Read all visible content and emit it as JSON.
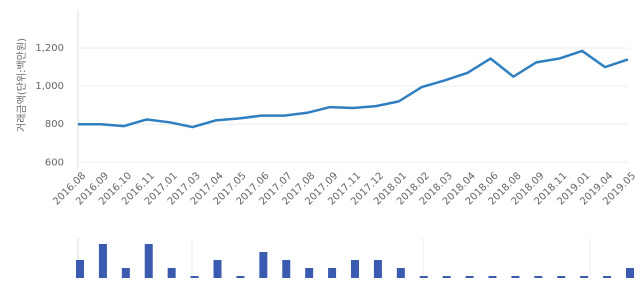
{
  "chart_data": [
    {
      "type": "line",
      "y_label": "거래금액(단위:백만원)",
      "categories": [
        "2016.08",
        "2016.09",
        "2016.10",
        "2016.11",
        "2017.01",
        "2017.03",
        "2017.04",
        "2017.05",
        "2017.06",
        "2017.07",
        "2017.08",
        "2017.09",
        "2017.11",
        "2017.12",
        "2018.01",
        "2018.02",
        "2018.03",
        "2018.04",
        "2018.06",
        "2018.08",
        "2018.09",
        "2018.11",
        "2019.01",
        "2019.04",
        "2019.05"
      ],
      "values": [
        800,
        800,
        790,
        825,
        810,
        785,
        820,
        830,
        845,
        845,
        860,
        890,
        885,
        895,
        920,
        995,
        1030,
        1070,
        1145,
        1050,
        1125,
        1145,
        1185,
        1100,
        1140
      ],
      "color": "#2f7fc1",
      "ylim": [
        570,
        1400
      ],
      "yticks": [
        600,
        800,
        {
          "value": 1000,
          "label": "1,000"
        },
        {
          "value": 1200,
          "label": "1,200"
        }
      ],
      "grid": true
    },
    {
      "type": "bar",
      "values": [
        2,
        4,
        1,
        4,
        1,
        0,
        2,
        0,
        3,
        2,
        1,
        1,
        2,
        2,
        1,
        0,
        0,
        0,
        0,
        0,
        0,
        0,
        0,
        0,
        1
      ],
      "color": "#3a5bb0",
      "ylim": [
        -0.25,
        4.75
      ]
    }
  ]
}
